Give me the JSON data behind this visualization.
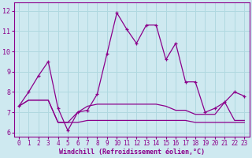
{
  "xlabel": "Windchill (Refroidissement éolien,°C)",
  "bg_color": "#cee9f0",
  "grid_color": "#b0d8e0",
  "line_color": "#8b008b",
  "spine_color": "#8b008b",
  "xlim": [
    -0.5,
    23.5
  ],
  "ylim": [
    5.8,
    12.4
  ],
  "yticks": [
    6,
    7,
    8,
    9,
    10,
    11,
    12
  ],
  "xticks": [
    0,
    1,
    2,
    3,
    4,
    5,
    6,
    7,
    8,
    9,
    10,
    11,
    12,
    13,
    14,
    15,
    16,
    17,
    18,
    19,
    20,
    21,
    22,
    23
  ],
  "series1_x": [
    0,
    1,
    2,
    3,
    4,
    5,
    6,
    7,
    8,
    9,
    10,
    11,
    12,
    13,
    14,
    15,
    16,
    17,
    18,
    19,
    20,
    21,
    22,
    23
  ],
  "series1_y": [
    7.3,
    8.0,
    8.8,
    9.5,
    7.2,
    6.1,
    7.0,
    7.1,
    7.9,
    9.9,
    11.9,
    11.1,
    10.4,
    11.3,
    11.3,
    9.6,
    10.4,
    8.5,
    8.5,
    7.0,
    7.2,
    7.5,
    8.0,
    7.8
  ],
  "series2_x": [
    0,
    1,
    2,
    3,
    4,
    5,
    6,
    7,
    8,
    9,
    10,
    11,
    12,
    13,
    14,
    15,
    16,
    17,
    18,
    19,
    20,
    21,
    22,
    23
  ],
  "series2_y": [
    7.3,
    7.6,
    7.6,
    7.6,
    6.5,
    6.5,
    7.0,
    7.3,
    7.4,
    7.4,
    7.4,
    7.4,
    7.4,
    7.4,
    7.4,
    7.3,
    7.1,
    7.1,
    6.9,
    6.9,
    6.9,
    7.5,
    6.6,
    6.6
  ],
  "series3_x": [
    0,
    1,
    2,
    3,
    4,
    5,
    6,
    7,
    8,
    9,
    10,
    11,
    12,
    13,
    14,
    15,
    16,
    17,
    18,
    19,
    20,
    21,
    22,
    23
  ],
  "series3_y": [
    7.3,
    7.6,
    7.6,
    7.6,
    6.5,
    6.5,
    6.5,
    6.6,
    6.6,
    6.6,
    6.6,
    6.6,
    6.6,
    6.6,
    6.6,
    6.6,
    6.6,
    6.6,
    6.5,
    6.5,
    6.5,
    6.5,
    6.5,
    6.5
  ],
  "tick_fontsize": 5.5,
  "label_fontsize": 6.0
}
